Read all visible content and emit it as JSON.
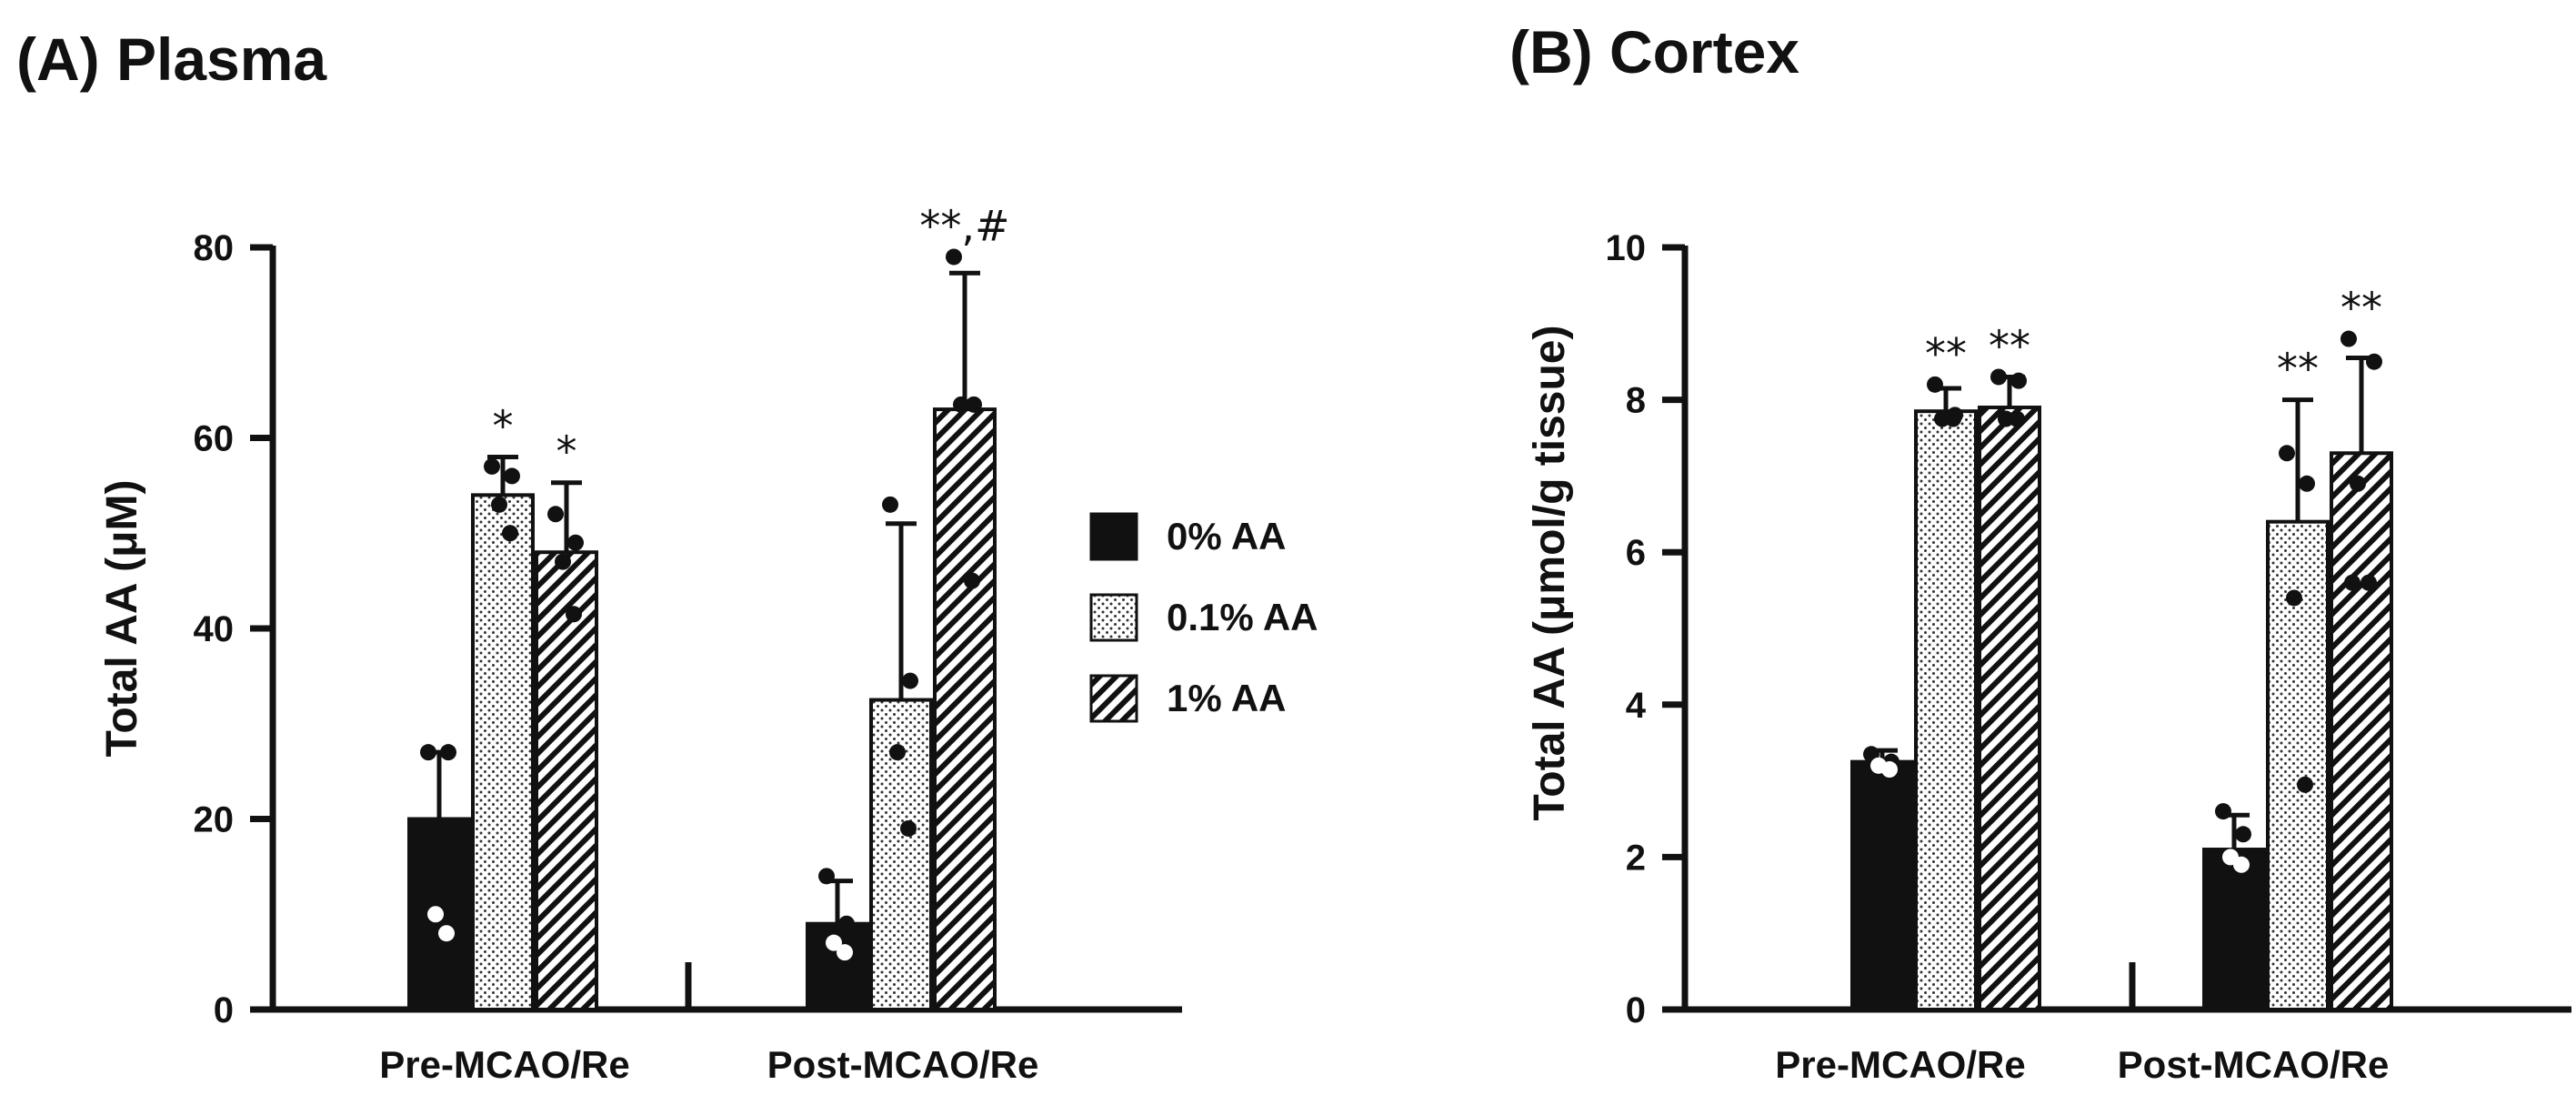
{
  "legend": [
    {
      "label": "0% AA",
      "pattern": "solid"
    },
    {
      "label": "0.1% AA",
      "pattern": "dots"
    },
    {
      "label": "1% AA",
      "pattern": "hatch"
    }
  ],
  "colors": {
    "ink": "#111111",
    "bar_solid": "#111111",
    "background": "#ffffff"
  },
  "chart_data": [
    {
      "type": "bar",
      "title": "(A) Plasma",
      "ylabel": "Total AA (μM)",
      "xlabel": "",
      "ylim": [
        0,
        80
      ],
      "yticks": [
        0,
        20,
        40,
        60,
        80
      ],
      "categories": [
        "Pre-MCAO/Re",
        "Post-MCAO/Re"
      ],
      "series": [
        {
          "name": "0% AA",
          "values": [
            20,
            9
          ],
          "errors": [
            7,
            4.5
          ],
          "points": [
            [
              27,
              27,
              10,
              8
            ],
            [
              14,
              9,
              7,
              6
            ]
          ],
          "sig": [
            "",
            ""
          ]
        },
        {
          "name": "0.1% AA",
          "values": [
            54,
            32.5
          ],
          "errors": [
            4,
            18.5
          ],
          "points": [
            [
              57,
              56,
              53,
              50
            ],
            [
              53,
              34.5,
              27,
              19
            ]
          ],
          "sig": [
            "*",
            ""
          ]
        },
        {
          "name": "1% AA",
          "values": [
            48,
            63
          ],
          "errors": [
            7.3,
            14.3
          ],
          "points": [
            [
              52,
              49,
              47,
              41.5
            ],
            [
              79,
              63.5,
              63.5,
              45
            ]
          ],
          "sig": [
            "*",
            "**,#"
          ]
        }
      ]
    },
    {
      "type": "bar",
      "title": "(B) Cortex",
      "ylabel": "Total AA (μmol/g tissue)",
      "xlabel": "",
      "ylim": [
        0,
        10
      ],
      "yticks": [
        0,
        2,
        4,
        6,
        8,
        10
      ],
      "categories": [
        "Pre-MCAO/Re",
        "Post-MCAO/Re"
      ],
      "series": [
        {
          "name": "0% AA",
          "values": [
            3.25,
            2.1
          ],
          "errors": [
            0.15,
            0.45
          ],
          "points": [
            [
              3.35,
              3.25,
              3.2,
              3.15
            ],
            [
              2.6,
              2.3,
              2.0,
              1.9
            ]
          ],
          "sig": [
            "",
            ""
          ]
        },
        {
          "name": "0.1% AA",
          "values": [
            7.85,
            6.4
          ],
          "errors": [
            0.3,
            1.6
          ],
          "points": [
            [
              8.2,
              7.8,
              7.75,
              7.75
            ],
            [
              7.3,
              6.9,
              5.4,
              2.95
            ]
          ],
          "sig": [
            "**",
            "**"
          ]
        },
        {
          "name": "1% AA",
          "values": [
            7.9,
            7.3
          ],
          "errors": [
            0.4,
            1.25
          ],
          "points": [
            [
              8.3,
              8.25,
              7.75,
              7.75
            ],
            [
              8.8,
              8.5,
              6.9,
              5.6,
              5.6
            ]
          ],
          "sig": [
            "**",
            "**"
          ]
        }
      ]
    }
  ]
}
